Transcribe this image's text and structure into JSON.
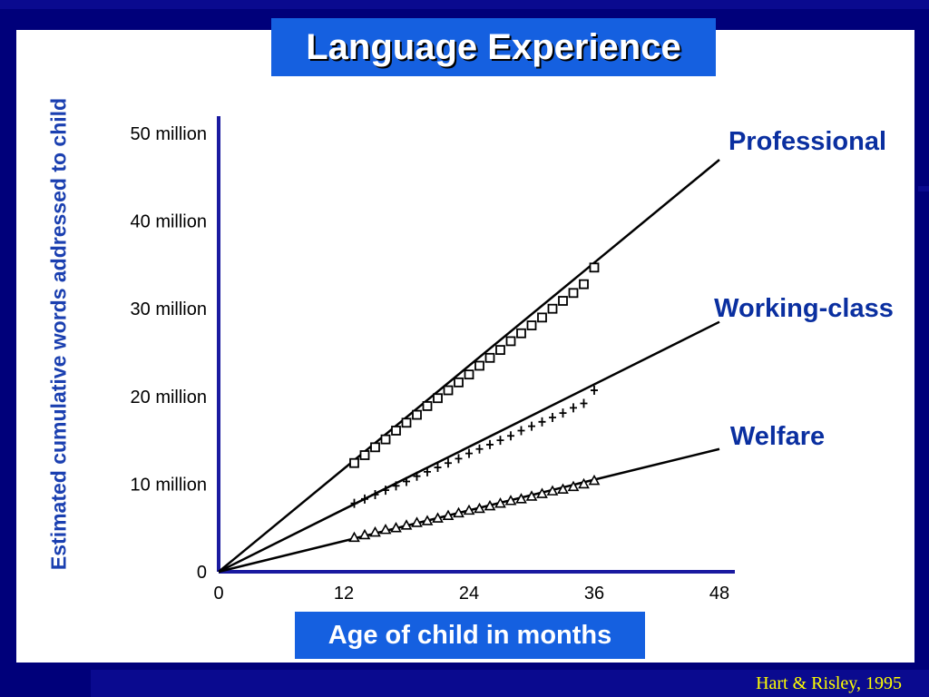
{
  "slide": {
    "title": "Language Experience",
    "citation": "Hart & Risley, 1995"
  },
  "colors": {
    "background": "#00007a",
    "panel": "#ffffff",
    "accent_box": "#1560e0",
    "axis": "#1a1aa0",
    "label_blue": "#0a2fa0",
    "citation": "#ffff00"
  },
  "chart_data": {
    "type": "line",
    "title": "Language Experience",
    "xlabel": "Age of child in months",
    "ylabel": "Estimated cumulative words addressed to child",
    "xlim": [
      0,
      48
    ],
    "ylim": [
      0,
      50000000
    ],
    "x_ticks": [
      "0",
      "12",
      "24",
      "36",
      "48"
    ],
    "y_ticks": [
      "0",
      "10 million",
      "20 million",
      "30 million",
      "40 million",
      "50 million"
    ],
    "grid": false,
    "series": [
      {
        "name": "Professional",
        "marker": "square",
        "fit_end": [
          48,
          47000000
        ],
        "x": [
          13,
          14,
          15,
          16,
          17,
          18,
          19,
          20,
          21,
          22,
          23,
          24,
          25,
          26,
          27,
          28,
          29,
          30,
          31,
          32,
          33,
          34,
          35,
          36
        ],
        "values": [
          12400000,
          13300000,
          14200000,
          15100000,
          16100000,
          17000000,
          17900000,
          18900000,
          19800000,
          20700000,
          21600000,
          22500000,
          23500000,
          24400000,
          25300000,
          26300000,
          27200000,
          28100000,
          29000000,
          30000000,
          30900000,
          31800000,
          32800000,
          34700000
        ]
      },
      {
        "name": "Working-class",
        "marker": "plus",
        "fit_end": [
          48,
          28500000
        ],
        "x": [
          13,
          14,
          15,
          16,
          17,
          18,
          19,
          20,
          21,
          22,
          23,
          24,
          25,
          26,
          27,
          28,
          29,
          30,
          31,
          32,
          33,
          34,
          35,
          36
        ],
        "values": [
          7800000,
          8300000,
          8800000,
          9300000,
          9800000,
          10300000,
          10900000,
          11400000,
          11900000,
          12400000,
          12900000,
          13500000,
          14000000,
          14500000,
          15000000,
          15500000,
          16100000,
          16600000,
          17100000,
          17600000,
          18100000,
          18700000,
          19200000,
          20700000
        ]
      },
      {
        "name": "Welfare",
        "marker": "triangle",
        "fit_end": [
          48,
          14000000
        ],
        "x": [
          13,
          14,
          15,
          16,
          17,
          18,
          19,
          20,
          21,
          22,
          23,
          24,
          25,
          26,
          27,
          28,
          29,
          30,
          31,
          32,
          33,
          34,
          35,
          36
        ],
        "values": [
          3900000,
          4200000,
          4500000,
          4800000,
          5000000,
          5300000,
          5600000,
          5800000,
          6100000,
          6400000,
          6700000,
          7000000,
          7200000,
          7500000,
          7800000,
          8100000,
          8300000,
          8600000,
          8900000,
          9200000,
          9400000,
          9700000,
          10000000,
          10400000
        ]
      }
    ]
  }
}
